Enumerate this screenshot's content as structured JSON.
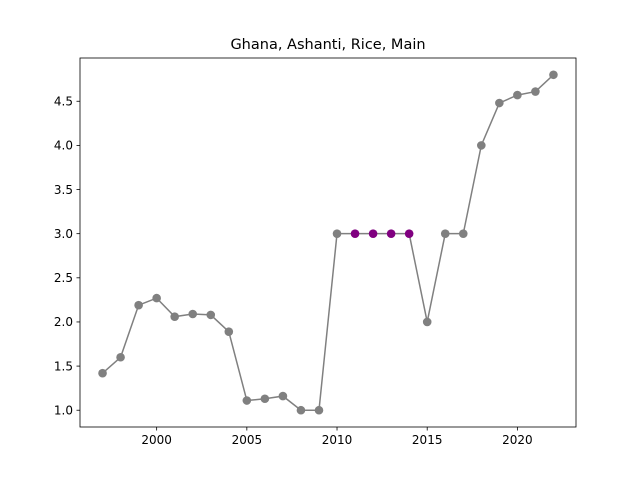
{
  "chart_data": {
    "type": "line",
    "title": "Ghana, Ashanti, Rice, Main",
    "xlabel": "",
    "ylabel": "",
    "xlim": [
      1995.75,
      2023.25
    ],
    "ylim": [
      0.81,
      4.99
    ],
    "xticks": [
      2000,
      2005,
      2010,
      2015,
      2020
    ],
    "yticks": [
      1.0,
      1.5,
      2.0,
      2.5,
      3.0,
      3.5,
      4.0,
      4.5
    ],
    "ytick_labels": [
      "1.0",
      "1.5",
      "2.0",
      "2.5",
      "3.0",
      "3.5",
      "4.0",
      "4.5"
    ],
    "grid": false,
    "legend": "none",
    "series": [
      {
        "x": [
          1997,
          1998,
          1999,
          2000,
          2001,
          2002,
          2003,
          2004,
          2005,
          2006,
          2007,
          2008,
          2009,
          2010,
          2011,
          2012,
          2013,
          2014,
          2015,
          2016,
          2017,
          2018,
          2019,
          2020,
          2021,
          2022
        ],
        "values": [
          1.42,
          1.6,
          2.19,
          2.27,
          2.06,
          2.09,
          2.08,
          1.89,
          1.11,
          1.13,
          1.16,
          1.0,
          1.0,
          3.0,
          3.0,
          3.0,
          3.0,
          3.0,
          2.0,
          3.0,
          3.0,
          4.0,
          4.48,
          4.57,
          4.61,
          4.8
        ],
        "highlighted_x": [
          2011,
          2012,
          2013,
          2014
        ]
      }
    ],
    "colors": {
      "line": "#808080",
      "marker": "#808080",
      "highlight": "#800080",
      "axis": "#000000"
    }
  }
}
